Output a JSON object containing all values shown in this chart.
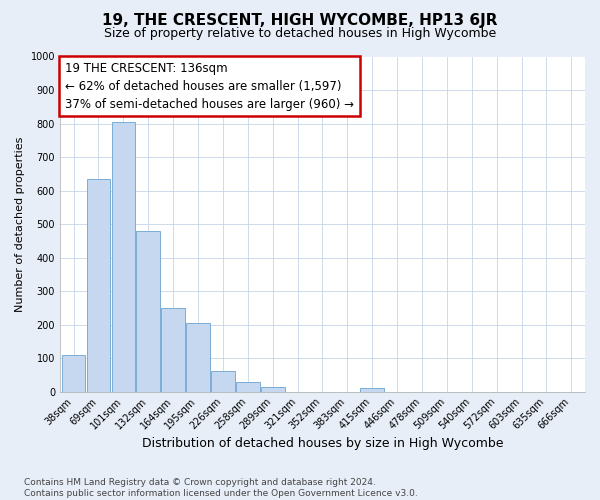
{
  "title": "19, THE CRESCENT, HIGH WYCOMBE, HP13 6JR",
  "subtitle": "Size of property relative to detached houses in High Wycombe",
  "xlabel": "Distribution of detached houses by size in High Wycombe",
  "ylabel": "Number of detached properties",
  "categories": [
    "38sqm",
    "69sqm",
    "101sqm",
    "132sqm",
    "164sqm",
    "195sqm",
    "226sqm",
    "258sqm",
    "289sqm",
    "321sqm",
    "352sqm",
    "383sqm",
    "415sqm",
    "446sqm",
    "478sqm",
    "509sqm",
    "540sqm",
    "572sqm",
    "603sqm",
    "635sqm",
    "666sqm"
  ],
  "values": [
    110,
    635,
    805,
    480,
    250,
    205,
    60,
    30,
    15,
    0,
    0,
    0,
    10,
    0,
    0,
    0,
    0,
    0,
    0,
    0,
    0
  ],
  "bar_color": "#c5d8f0",
  "bar_edge_color": "#7aadd4",
  "annotation_text": "19 THE CRESCENT: 136sqm\n← 62% of detached houses are smaller (1,597)\n37% of semi-detached houses are larger (960) →",
  "annotation_box_color": "#cc0000",
  "ylim": [
    0,
    1000
  ],
  "yticks": [
    0,
    100,
    200,
    300,
    400,
    500,
    600,
    700,
    800,
    900,
    1000
  ],
  "grid_color": "#c8d4e8",
  "plot_bg_color": "#ffffff",
  "fig_bg_color": "#e8eef8",
  "footer": "Contains HM Land Registry data © Crown copyright and database right 2024.\nContains public sector information licensed under the Open Government Licence v3.0.",
  "title_fontsize": 11,
  "subtitle_fontsize": 9,
  "xlabel_fontsize": 9,
  "ylabel_fontsize": 8,
  "tick_fontsize": 7,
  "annotation_fontsize": 8.5,
  "footer_fontsize": 6.5
}
